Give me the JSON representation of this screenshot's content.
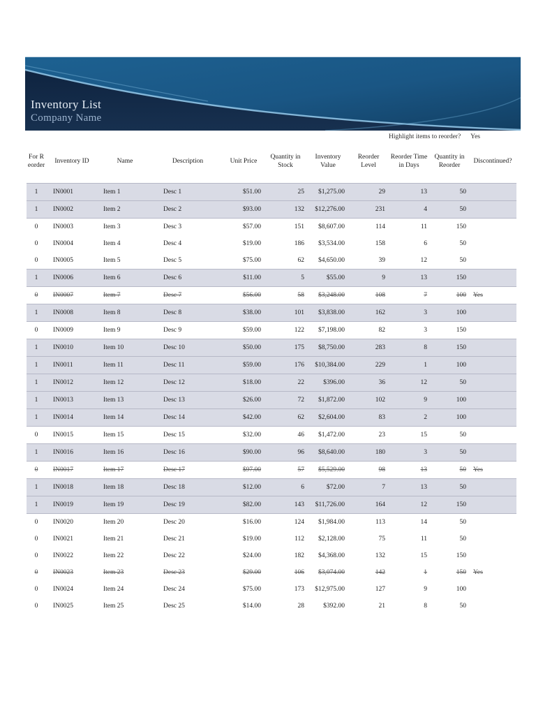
{
  "banner": {
    "title": "Inventory List",
    "subtitle": "Company Name",
    "colors": {
      "teal": "#1b5c8d",
      "teal_dark": "#123f63",
      "navy": "#14294a",
      "swoosh": "#8fc3e4",
      "title_text": "#e3ebf4",
      "subtitle_text": "#9db4cf"
    }
  },
  "controls": {
    "highlight_label": "Highlight items to reorder?",
    "highlight_value": "Yes"
  },
  "table": {
    "row_highlight_color": "#d9dbe5",
    "columns": [
      "For Reorder",
      "Inventory ID",
      "Name",
      "Description",
      "Unit Price",
      "Quantity in Stock",
      "Inventory Value",
      "Reorder Level",
      "Reorder Time in Days",
      "Quantity in Reorder",
      "Discontinued?"
    ],
    "rows": [
      {
        "cells": [
          "1",
          "IN0001",
          "Item 1",
          "Desc 1",
          "$51.00",
          "25",
          "$1,275.00",
          "29",
          "13",
          "50",
          ""
        ],
        "highlight": true,
        "discontinued": false
      },
      {
        "cells": [
          "1",
          "IN0002",
          "Item 2",
          "Desc 2",
          "$93.00",
          "132",
          "$12,276.00",
          "231",
          "4",
          "50",
          ""
        ],
        "highlight": true,
        "discontinued": false
      },
      {
        "cells": [
          "0",
          "IN0003",
          "Item 3",
          "Desc 3",
          "$57.00",
          "151",
          "$8,607.00",
          "114",
          "11",
          "150",
          ""
        ],
        "highlight": false,
        "discontinued": false
      },
      {
        "cells": [
          "0",
          "IN0004",
          "Item 4",
          "Desc 4",
          "$19.00",
          "186",
          "$3,534.00",
          "158",
          "6",
          "50",
          ""
        ],
        "highlight": false,
        "discontinued": false
      },
      {
        "cells": [
          "0",
          "IN0005",
          "Item 5",
          "Desc 5",
          "$75.00",
          "62",
          "$4,650.00",
          "39",
          "12",
          "50",
          ""
        ],
        "highlight": false,
        "discontinued": false
      },
      {
        "cells": [
          "1",
          "IN0006",
          "Item 6",
          "Desc 6",
          "$11.00",
          "5",
          "$55.00",
          "9",
          "13",
          "150",
          ""
        ],
        "highlight": true,
        "discontinued": false
      },
      {
        "cells": [
          "0",
          "IN0007",
          "Item 7",
          "Desc 7",
          "$56.00",
          "58",
          "$3,248.00",
          "108",
          "7",
          "100",
          "Yes"
        ],
        "highlight": false,
        "discontinued": true
      },
      {
        "cells": [
          "1",
          "IN0008",
          "Item 8",
          "Desc 8",
          "$38.00",
          "101",
          "$3,838.00",
          "162",
          "3",
          "100",
          ""
        ],
        "highlight": true,
        "discontinued": false
      },
      {
        "cells": [
          "0",
          "IN0009",
          "Item 9",
          "Desc 9",
          "$59.00",
          "122",
          "$7,198.00",
          "82",
          "3",
          "150",
          ""
        ],
        "highlight": false,
        "discontinued": false
      },
      {
        "cells": [
          "1",
          "IN0010",
          "Item 10",
          "Desc 10",
          "$50.00",
          "175",
          "$8,750.00",
          "283",
          "8",
          "150",
          ""
        ],
        "highlight": true,
        "discontinued": false
      },
      {
        "cells": [
          "1",
          "IN0011",
          "Item 11",
          "Desc 11",
          "$59.00",
          "176",
          "$10,384.00",
          "229",
          "1",
          "100",
          ""
        ],
        "highlight": true,
        "discontinued": false
      },
      {
        "cells": [
          "1",
          "IN0012",
          "Item 12",
          "Desc 12",
          "$18.00",
          "22",
          "$396.00",
          "36",
          "12",
          "50",
          ""
        ],
        "highlight": true,
        "discontinued": false
      },
      {
        "cells": [
          "1",
          "IN0013",
          "Item 13",
          "Desc 13",
          "$26.00",
          "72",
          "$1,872.00",
          "102",
          "9",
          "100",
          ""
        ],
        "highlight": true,
        "discontinued": false
      },
      {
        "cells": [
          "1",
          "IN0014",
          "Item 14",
          "Desc 14",
          "$42.00",
          "62",
          "$2,604.00",
          "83",
          "2",
          "100",
          ""
        ],
        "highlight": true,
        "discontinued": false
      },
      {
        "cells": [
          "0",
          "IN0015",
          "Item 15",
          "Desc 15",
          "$32.00",
          "46",
          "$1,472.00",
          "23",
          "15",
          "50",
          ""
        ],
        "highlight": false,
        "discontinued": false
      },
      {
        "cells": [
          "1",
          "IN0016",
          "Item 16",
          "Desc 16",
          "$90.00",
          "96",
          "$8,640.00",
          "180",
          "3",
          "50",
          ""
        ],
        "highlight": true,
        "discontinued": false
      },
      {
        "cells": [
          "0",
          "IN0017",
          "Item 17",
          "Desc 17",
          "$97.00",
          "57",
          "$5,529.00",
          "98",
          "13",
          "50",
          "Yes"
        ],
        "highlight": false,
        "discontinued": true
      },
      {
        "cells": [
          "1",
          "IN0018",
          "Item 18",
          "Desc 18",
          "$12.00",
          "6",
          "$72.00",
          "7",
          "13",
          "50",
          ""
        ],
        "highlight": true,
        "discontinued": false
      },
      {
        "cells": [
          "1",
          "IN0019",
          "Item 19",
          "Desc 19",
          "$82.00",
          "143",
          "$11,726.00",
          "164",
          "12",
          "150",
          ""
        ],
        "highlight": true,
        "discontinued": false
      },
      {
        "cells": [
          "0",
          "IN0020",
          "Item 20",
          "Desc 20",
          "$16.00",
          "124",
          "$1,984.00",
          "113",
          "14",
          "50",
          ""
        ],
        "highlight": false,
        "discontinued": false
      },
      {
        "cells": [
          "0",
          "IN0021",
          "Item 21",
          "Desc 21",
          "$19.00",
          "112",
          "$2,128.00",
          "75",
          "11",
          "50",
          ""
        ],
        "highlight": false,
        "discontinued": false
      },
      {
        "cells": [
          "0",
          "IN0022",
          "Item 22",
          "Desc 22",
          "$24.00",
          "182",
          "$4,368.00",
          "132",
          "15",
          "150",
          ""
        ],
        "highlight": false,
        "discontinued": false
      },
      {
        "cells": [
          "0",
          "IN0023",
          "Item 23",
          "Desc 23",
          "$29.00",
          "106",
          "$3,074.00",
          "142",
          "1",
          "150",
          "Yes"
        ],
        "highlight": false,
        "discontinued": true
      },
      {
        "cells": [
          "0",
          "IN0024",
          "Item 24",
          "Desc 24",
          "$75.00",
          "173",
          "$12,975.00",
          "127",
          "9",
          "100",
          ""
        ],
        "highlight": false,
        "discontinued": false
      },
      {
        "cells": [
          "0",
          "IN0025",
          "Item 25",
          "Desc 25",
          "$14.00",
          "28",
          "$392.00",
          "21",
          "8",
          "50",
          ""
        ],
        "highlight": false,
        "discontinued": false
      }
    ]
  }
}
